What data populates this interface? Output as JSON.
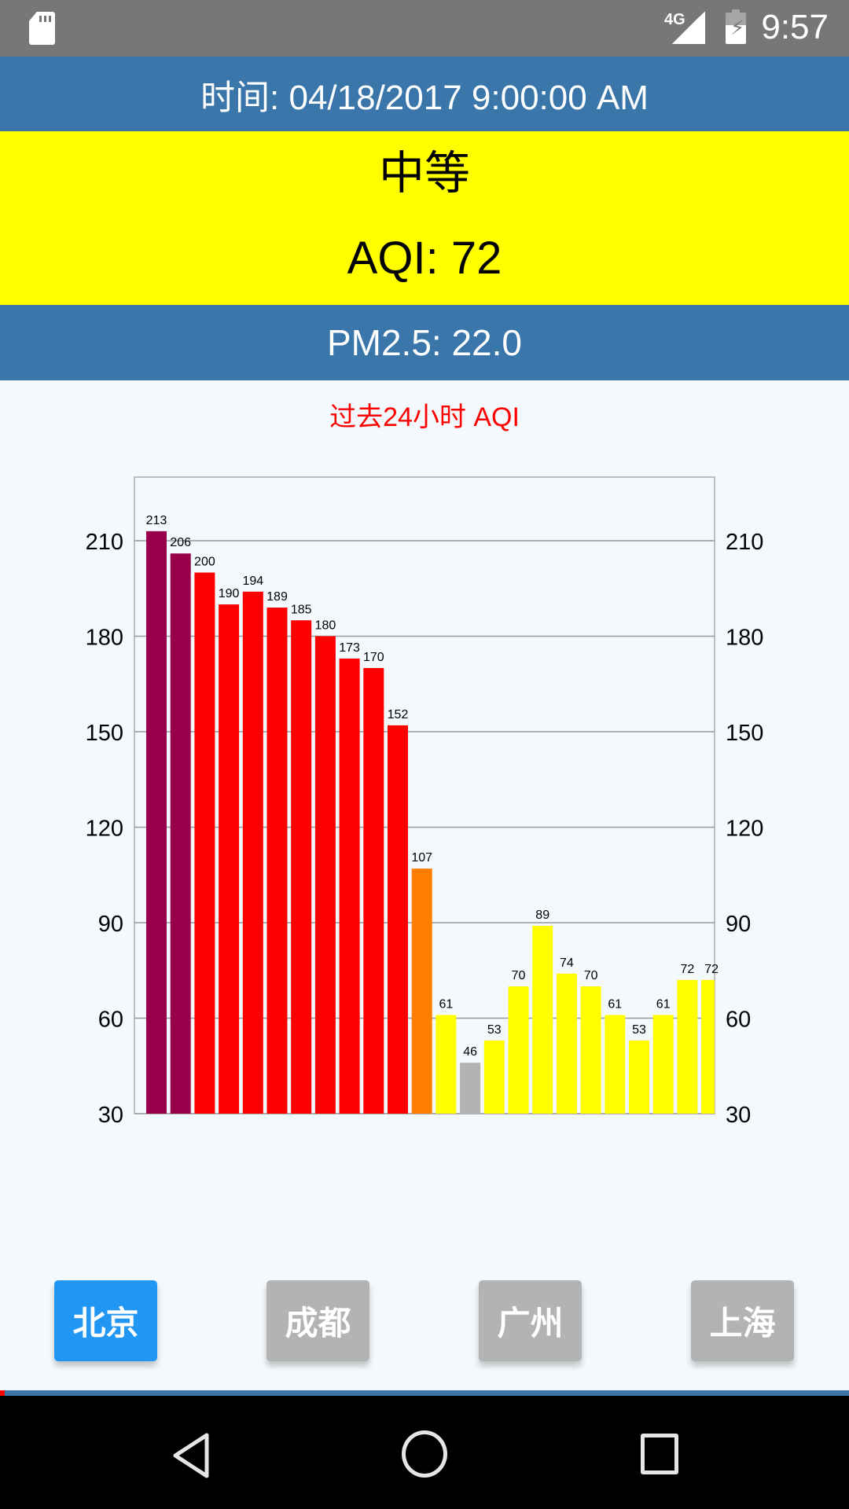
{
  "status_bar": {
    "network": "4G",
    "time": "9:57",
    "icons": [
      "sd-card-icon",
      "signal-icon",
      "battery-charging-icon"
    ]
  },
  "header": {
    "time_label": "时间: 04/18/2017 9:00:00 AM"
  },
  "level": {
    "category": "中等",
    "aqi_label": "AQI: 72",
    "color": "#ffff00"
  },
  "pm": {
    "label": "PM2.5: 22.0"
  },
  "chart_data": {
    "type": "bar",
    "title": "过去24小时 AQI",
    "values": [
      213,
      206,
      200,
      190,
      194,
      189,
      185,
      180,
      173,
      170,
      152,
      107,
      61,
      46,
      53,
      70,
      89,
      74,
      70,
      61,
      53,
      61,
      72,
      72
    ],
    "colors": [
      "#99004c",
      "#99004c",
      "#ff0000",
      "#ff0000",
      "#ff0000",
      "#ff0000",
      "#ff0000",
      "#ff0000",
      "#ff0000",
      "#ff0000",
      "#ff0000",
      "#ff7e00",
      "#ffff00",
      "#b3b3b3",
      "#ffff00",
      "#ffff00",
      "#ffff00",
      "#ffff00",
      "#ffff00",
      "#ffff00",
      "#ffff00",
      "#ffff00",
      "#ffff00",
      "#ffff00"
    ],
    "ylim": [
      30,
      230
    ],
    "yticks": [
      30,
      60,
      90,
      120,
      150,
      180,
      210
    ],
    "grid": true,
    "axes": "left-and-right"
  },
  "cities": [
    {
      "label": "北京",
      "active": true
    },
    {
      "label": "成都",
      "active": false
    },
    {
      "label": "广州",
      "active": false
    },
    {
      "label": "上海",
      "active": false
    }
  ],
  "accent_colors": {
    "header": "#3a76aa",
    "active_button": "#2196f3",
    "inactive_button": "#b3b3b3",
    "title": "#ff0000"
  }
}
